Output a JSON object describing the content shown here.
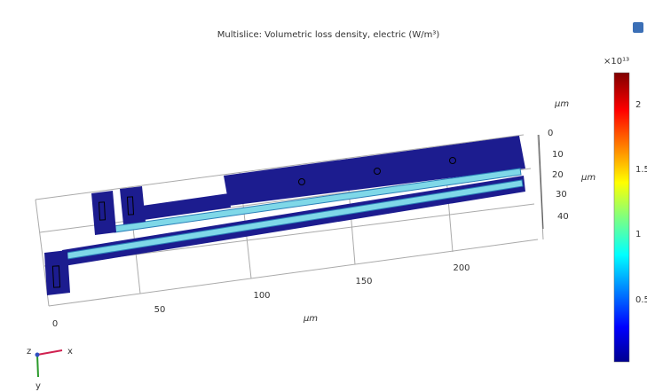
{
  "plot": {
    "title": "Multislice: Volumetric loss density, electric (W/m³)",
    "x_axis": {
      "ticks": [
        "0",
        "50",
        "100",
        "150",
        "200"
      ],
      "unit": "μm"
    },
    "z_axis": {
      "unit": "μm",
      "ticks": [
        "0",
        "10",
        "20",
        "30",
        "40"
      ]
    },
    "side_unit": "μm",
    "colorbar": {
      "multiplier": "×10¹³",
      "ticks": [
        "2",
        "1.5",
        "1",
        "0.5"
      ]
    },
    "triad": {
      "x": "x",
      "y": "y",
      "z": "z"
    }
  }
}
